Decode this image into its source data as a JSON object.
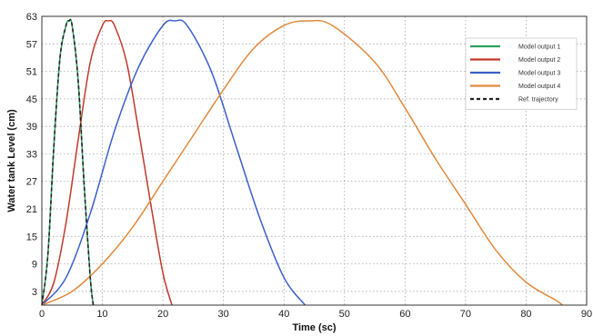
{
  "chart_data": {
    "type": "line",
    "title": "",
    "xlabel": "Time (sc)",
    "ylabel": "Water tank Level (cm)",
    "xlim": [
      0,
      90
    ],
    "ylim": [
      0,
      63
    ],
    "x_ticks": [
      0,
      10,
      20,
      30,
      40,
      50,
      60,
      70,
      80,
      90
    ],
    "y_ticks": [
      3,
      9,
      15,
      21,
      27,
      33,
      39,
      45,
      51,
      57,
      63
    ],
    "grid": true,
    "legend_position": "top-right",
    "legend": [
      "Model output 1",
      "Model output 2",
      "Model output 3",
      "Model output 4",
      "Ref. trajectory"
    ],
    "series": [
      {
        "name": "Model output 1",
        "color": "#2ca25f",
        "style": "solid",
        "x": [
          0,
          1,
          2,
          3,
          4,
          4.5,
          5,
          6,
          7,
          8,
          8.5
        ],
        "y": [
          0,
          11,
          35,
          54,
          61,
          62,
          61,
          49,
          26,
          6,
          0
        ]
      },
      {
        "name": "Model output 2",
        "color": "#c0392b",
        "style": "solid",
        "x": [
          0,
          2,
          4,
          6,
          8,
          10,
          11,
          12,
          14,
          16,
          18,
          20,
          21.5
        ],
        "y": [
          0,
          5,
          18,
          36,
          53,
          61,
          62,
          61,
          53,
          38,
          22,
          7,
          0
        ]
      },
      {
        "name": "Model output 3",
        "color": "#3a5fcd",
        "style": "solid",
        "x": [
          0,
          4,
          8,
          12,
          16,
          20,
          22,
          24,
          28,
          32,
          36,
          40,
          43.5
        ],
        "y": [
          0,
          6,
          20,
          38,
          52,
          61,
          62,
          61,
          51,
          35,
          19,
          6,
          0
        ]
      },
      {
        "name": "Model output 4",
        "color": "#e08a3c",
        "style": "solid",
        "x": [
          0,
          5,
          10,
          15,
          20,
          25,
          30,
          35,
          40,
          44,
          48,
          55,
          60,
          65,
          70,
          75,
          80,
          85,
          86
        ],
        "y": [
          0,
          3,
          9,
          17,
          27,
          37,
          47,
          56,
          61,
          62,
          61,
          53,
          43,
          32,
          22,
          12,
          5,
          1,
          0
        ]
      },
      {
        "name": "Ref. trajectory",
        "color": "#222222",
        "style": "dashed",
        "x": [
          0,
          1,
          2,
          3,
          4,
          4.5,
          5,
          6,
          7,
          8,
          8.5
        ],
        "y": [
          0,
          11,
          35,
          54,
          61,
          62,
          61,
          49,
          26,
          6,
          0
        ]
      }
    ]
  }
}
